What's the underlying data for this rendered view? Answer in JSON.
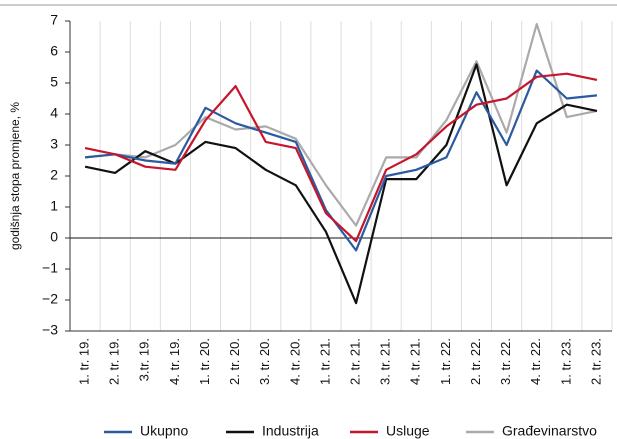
{
  "chart_data": {
    "type": "line",
    "ylabel": "godišnja stopa promjene, %",
    "categories": [
      "1. tr. 19.",
      "2. tr. 19.",
      "3.tr. 19.",
      "4. tr. 19.",
      "1. tr. 20.",
      "2. tr. 20.",
      "3. tr. 20.",
      "4. tr. 20.",
      "1. tr. 21.",
      "2. tr. 21.",
      "3. tr. 21.",
      "4. tr. 21.",
      "1. tr. 22.",
      "2. tr. 22.",
      "3. tr. 22.",
      "4. tr. 22.",
      "1. tr. 23.",
      "2. tr. 23."
    ],
    "series": [
      {
        "name": "Ukupno",
        "color": "#2b5aa0",
        "values": [
          2.6,
          2.7,
          2.5,
          2.4,
          4.2,
          3.7,
          3.4,
          3.1,
          0.9,
          -0.4,
          2.0,
          2.2,
          2.6,
          4.7,
          3.0,
          5.4,
          4.5,
          4.6
        ]
      },
      {
        "name": "Industrija",
        "color": "#111111",
        "values": [
          2.3,
          2.1,
          2.8,
          2.4,
          3.1,
          2.9,
          2.2,
          1.7,
          0.2,
          -2.1,
          1.9,
          1.9,
          3.0,
          5.6,
          1.7,
          3.7,
          4.3,
          4.1
        ]
      },
      {
        "name": "Usluge",
        "color": "#c4162c",
        "values": [
          2.9,
          2.7,
          2.3,
          2.2,
          3.8,
          4.9,
          3.1,
          2.9,
          0.8,
          -0.1,
          2.2,
          2.7,
          3.6,
          4.3,
          4.5,
          5.2,
          5.3,
          5.1
        ]
      },
      {
        "name": "Građevinarstvo",
        "color": "#aaaaaa",
        "values": [
          2.6,
          2.7,
          2.6,
          3.0,
          3.9,
          3.5,
          3.6,
          3.2,
          1.7,
          0.4,
          2.6,
          2.6,
          3.8,
          5.7,
          3.4,
          6.9,
          3.9,
          4.1
        ]
      }
    ],
    "ylim": [
      -3,
      7
    ],
    "yticks": [
      {
        "value": -3,
        "label": "−3"
      },
      {
        "value": -2,
        "label": "−2"
      },
      {
        "value": -1,
        "label": "−1"
      },
      0,
      1,
      2,
      3,
      4,
      5,
      6,
      7
    ],
    "grid": true
  }
}
